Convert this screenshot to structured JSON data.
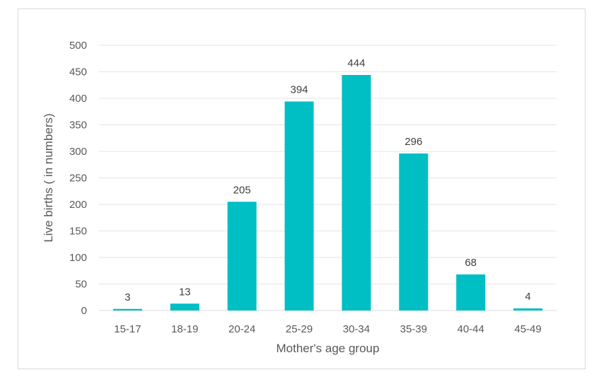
{
  "chart_data": {
    "type": "bar",
    "categories": [
      "15-17",
      "18-19",
      "20-24",
      "25-29",
      "30-34",
      "35-39",
      "40-44",
      "45-49"
    ],
    "series": [
      {
        "values": [
          3,
          13,
          205,
          394,
          444,
          296,
          68,
          4
        ]
      }
    ],
    "data_labels": [
      "3",
      "13",
      "205",
      "394",
      "444",
      "296",
      "68",
      "4"
    ],
    "xlabel": "Mother's age group",
    "ylabel": "Live births ( in numbers)",
    "ylim": [
      0,
      500
    ],
    "yticks": [
      0,
      50,
      100,
      150,
      200,
      250,
      300,
      350,
      400,
      450,
      500
    ],
    "ytick_labels": [
      "0",
      "50",
      "100",
      "150",
      "200",
      "250",
      "300",
      "350",
      "400",
      "450",
      "500"
    ],
    "grid": true,
    "legend": "none",
    "bar_color": "#00bfc4"
  }
}
